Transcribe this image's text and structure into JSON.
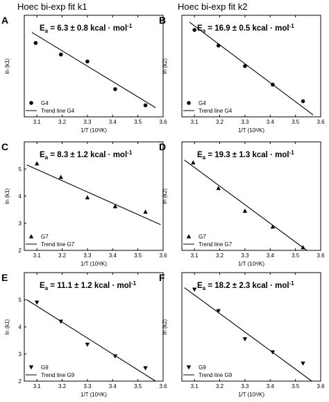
{
  "figure": {
    "column_titles": [
      "Hoec bi-exp fit k1",
      "Hoec bi-exp fit k2"
    ]
  },
  "chart_data": [
    {
      "type": "scatter",
      "panel": "A",
      "annotation": "Ea = 6.3 ± 0.8 kcal · mol-1",
      "xlabel": "1/T (10³/K)",
      "ylabel": "ln (k1)",
      "xlim": [
        3.05,
        3.6
      ],
      "ylim": [
        4.0,
        6.2
      ],
      "xticks": [
        "3.1",
        "3.2",
        "3.3",
        "3.4",
        "3.5",
        "3.6"
      ],
      "yticks": [],
      "series": [
        {
          "name": "G4",
          "marker": "circle",
          "x": [
            3.095,
            3.195,
            3.3,
            3.41,
            3.53
          ],
          "y": [
            5.6,
            5.35,
            5.2,
            4.6,
            4.25
          ]
        },
        {
          "name": "Trend line G4",
          "line": true,
          "x": [
            3.08,
            3.57
          ],
          "y": [
            5.83,
            4.2
          ]
        }
      ]
    },
    {
      "type": "scatter",
      "panel": "B",
      "annotation": "Ea = 16.9 ± 0.5 kcal · mol-1",
      "xlabel": "1/T (10³/K)",
      "ylabel": "ln (k2)",
      "xlim": [
        3.05,
        3.6
      ],
      "ylim": [
        -1.3,
        3.9
      ],
      "xticks": [
        "3.1",
        "3.2",
        "3.3",
        "3.4",
        "3.5",
        "3.6"
      ],
      "yticks": [],
      "series": [
        {
          "name": "G4",
          "marker": "circle",
          "x": [
            3.1,
            3.195,
            3.3,
            3.41,
            3.53
          ],
          "y": [
            3.15,
            2.35,
            1.3,
            0.35,
            -0.5
          ]
        },
        {
          "name": "Trend line G4",
          "line": true,
          "x": [
            3.08,
            3.57
          ],
          "y": [
            3.55,
            -1.2
          ]
        }
      ]
    },
    {
      "type": "scatter",
      "panel": "C",
      "annotation": "Ea = 8.3 ± 1.2 kcal · mol-1",
      "xlabel": "1/T (10³/K)",
      "ylabel": "ln (k1)",
      "xlim": [
        3.05,
        3.6
      ],
      "ylim": [
        2.0,
        6.0
      ],
      "xticks": [
        "3.1",
        "3.2",
        "3.3",
        "3.4",
        "3.5",
        "3.6"
      ],
      "yticks": [
        "2",
        "3",
        "4",
        "5"
      ],
      "series": [
        {
          "name": "G7",
          "marker": "triangle-up",
          "x": [
            3.1,
            3.195,
            3.3,
            3.41,
            3.53
          ],
          "y": [
            5.2,
            4.7,
            3.95,
            3.62,
            3.42
          ]
        },
        {
          "name": "Trend line G7",
          "line": true,
          "x": [
            3.06,
            3.59
          ],
          "y": [
            5.15,
            2.95
          ]
        }
      ]
    },
    {
      "type": "scatter",
      "panel": "D",
      "annotation": "Ea = 19.3 ± 1.3 kcal · mol-1",
      "xlabel": "1/T (10³/K)",
      "ylabel": "ln (k2)",
      "xlim": [
        3.05,
        3.6
      ],
      "ylim": [
        -1.0,
        4.5
      ],
      "xticks": [
        "3.1",
        "3.2",
        "3.3",
        "3.4",
        "3.5",
        "3.6"
      ],
      "yticks": [],
      "series": [
        {
          "name": "G7",
          "marker": "triangle-up",
          "x": [
            3.095,
            3.195,
            3.3,
            3.41,
            3.53
          ],
          "y": [
            3.45,
            2.15,
            1.0,
            0.2,
            -0.85
          ]
        },
        {
          "name": "Trend line G7",
          "line": true,
          "x": [
            3.06,
            3.545
          ],
          "y": [
            3.58,
            -1.0
          ]
        }
      ]
    },
    {
      "type": "scatter",
      "panel": "E",
      "annotation": "Ea = 11.1 ± 1.2 kcal · mol-1",
      "xlabel": "1/T (10³/K)",
      "ylabel": "ln (k1)",
      "xlim": [
        3.05,
        3.6
      ],
      "ylim": [
        2.0,
        6.0
      ],
      "xticks": [
        "3.1",
        "3.2",
        "3.3",
        "3.4",
        "3.5",
        "3.6"
      ],
      "yticks": [
        "2",
        "3",
        "4",
        "5"
      ],
      "series": [
        {
          "name": "G9",
          "marker": "triangle-down",
          "x": [
            3.1,
            3.195,
            3.3,
            3.41,
            3.53
          ],
          "y": [
            4.9,
            4.2,
            3.35,
            2.92,
            2.48
          ]
        },
        {
          "name": "Trend line G9",
          "line": true,
          "x": [
            3.06,
            3.57
          ],
          "y": [
            5.0,
            2.0
          ]
        }
      ]
    },
    {
      "type": "scatter",
      "panel": "F",
      "annotation": "Ea = 18.2 ± 2.3 kcal · mol-1",
      "xlabel": "1/T (10³/K)",
      "ylabel": "ln (k2)",
      "xlim": [
        3.05,
        3.6
      ],
      "ylim": [
        -1.3,
        4.5
      ],
      "xticks": [
        "3.1",
        "3.2",
        "3.3",
        "3.4",
        "3.5",
        "3.6"
      ],
      "yticks": [],
      "series": [
        {
          "name": "G9",
          "marker": "triangle-down",
          "x": [
            3.1,
            3.195,
            3.3,
            3.41,
            3.53
          ],
          "y": [
            3.6,
            2.45,
            0.95,
            0.25,
            -0.35
          ]
        },
        {
          "name": "Trend line G9",
          "line": true,
          "x": [
            3.06,
            3.565
          ],
          "y": [
            3.7,
            -1.3
          ]
        }
      ]
    }
  ]
}
